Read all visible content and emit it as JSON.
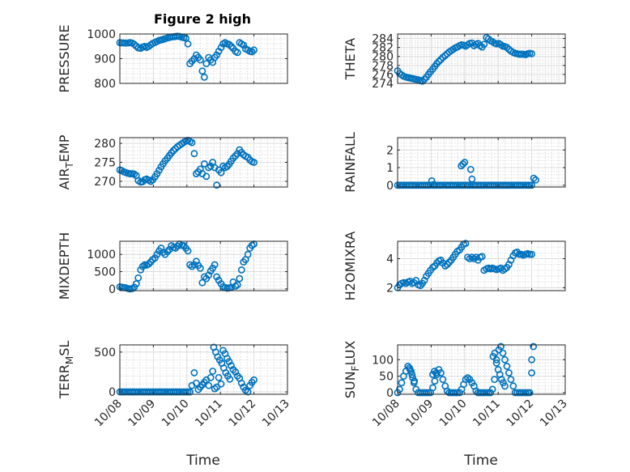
{
  "figure_title": "Figure 2 high",
  "marker_color": "#0072BD",
  "chart_data": [
    {
      "type": "scatter",
      "ylabel": "PRESSURE",
      "ylim": [
        800,
        1000
      ],
      "yticks": [
        800,
        900,
        1000
      ],
      "ytick_labels": [
        "800",
        "900",
        "1000"
      ],
      "xlim": [
        0,
        5
      ],
      "x": [
        0.0,
        0.06,
        0.12,
        0.18,
        0.25,
        0.31,
        0.37,
        0.43,
        0.49,
        0.55,
        0.62,
        0.68,
        0.74,
        0.8,
        0.86,
        0.92,
        0.98,
        1.05,
        1.11,
        1.17,
        1.23,
        1.29,
        1.35,
        1.42,
        1.48,
        1.54,
        1.6,
        1.66,
        1.72,
        1.78,
        1.85,
        1.91,
        1.97,
        2.03,
        2.09,
        2.15,
        2.22,
        2.28,
        2.34,
        2.4,
        2.46,
        2.52,
        2.58,
        2.65,
        2.71,
        2.77,
        2.83,
        2.89,
        2.95,
        3.02,
        3.08,
        3.14,
        3.2,
        3.26,
        3.32,
        3.38,
        3.45,
        3.51,
        3.57,
        3.63,
        3.69,
        3.75,
        3.82,
        3.88,
        3.94,
        4.0
      ],
      "y": [
        965,
        964,
        964,
        963,
        964,
        965,
        963,
        958,
        951,
        944,
        942,
        947,
        950,
        946,
        950,
        956,
        962,
        966,
        970,
        974,
        976,
        978,
        981,
        984,
        986,
        988,
        989,
        990,
        991,
        990,
        987,
        985,
        983,
        960,
        880,
        890,
        900,
        915,
        905,
        895,
        850,
        825,
        880,
        905,
        895,
        885,
        905,
        915,
        930,
        945,
        960,
        965,
        960,
        958,
        950,
        942,
        930,
        925,
        965,
        960,
        955,
        940,
        935,
        930,
        928,
        935
      ]
    },
    {
      "type": "scatter",
      "ylabel": "THETA",
      "ylim": [
        274,
        285
      ],
      "yticks": [
        274,
        276,
        278,
        280,
        282,
        284
      ],
      "ytick_labels": [
        "274",
        "276",
        "278",
        "280",
        "282",
        "284"
      ],
      "xlim": [
        0,
        5
      ],
      "x": [
        0.0,
        0.06,
        0.12,
        0.18,
        0.25,
        0.31,
        0.37,
        0.43,
        0.49,
        0.55,
        0.62,
        0.68,
        0.74,
        0.8,
        0.86,
        0.92,
        0.98,
        1.05,
        1.11,
        1.17,
        1.23,
        1.29,
        1.35,
        1.42,
        1.48,
        1.54,
        1.6,
        1.66,
        1.72,
        1.78,
        1.85,
        1.91,
        1.97,
        2.03,
        2.09,
        2.15,
        2.22,
        2.28,
        2.34,
        2.4,
        2.46,
        2.52,
        2.58,
        2.65,
        2.71,
        2.77,
        2.83,
        2.89,
        2.95,
        3.02,
        3.08,
        3.14,
        3.2,
        3.26,
        3.32,
        3.38,
        3.45,
        3.51,
        3.57,
        3.63,
        3.69,
        3.75,
        3.82,
        3.88,
        3.94,
        4.0
      ],
      "y": [
        276.8,
        276.2,
        275.9,
        275.6,
        275.4,
        275.3,
        275.2,
        275.1,
        275.0,
        274.9,
        274.8,
        274.6,
        274.5,
        274.9,
        275.4,
        276.0,
        276.6,
        277.2,
        277.8,
        278.4,
        278.9,
        279.3,
        279.8,
        280.2,
        280.6,
        281.0,
        281.3,
        281.6,
        281.9,
        282.1,
        282.4,
        282.6,
        282.5,
        282.3,
        282.6,
        282.9,
        283.0,
        282.4,
        282.7,
        282.9,
        282.4,
        282.1,
        282.7,
        284.2,
        283.9,
        283.5,
        283.3,
        283.0,
        282.8,
        282.9,
        282.6,
        282.3,
        282.2,
        282.0,
        281.6,
        281.2,
        280.9,
        280.7,
        280.6,
        280.5,
        280.5,
        280.5,
        280.4,
        280.6,
        280.7,
        280.6
      ]
    },
    {
      "type": "scatter",
      "ylabel": "AIR_TEMP",
      "ylim": [
        268.5,
        281.5
      ],
      "yticks": [
        270,
        275,
        280
      ],
      "ytick_labels": [
        "270",
        "275",
        "280"
      ],
      "xlim": [
        0,
        5
      ],
      "x": [
        0.0,
        0.06,
        0.12,
        0.18,
        0.25,
        0.31,
        0.37,
        0.43,
        0.49,
        0.55,
        0.62,
        0.68,
        0.74,
        0.8,
        0.86,
        0.92,
        0.98,
        1.05,
        1.11,
        1.17,
        1.23,
        1.29,
        1.35,
        1.42,
        1.48,
        1.54,
        1.6,
        1.66,
        1.72,
        1.78,
        1.85,
        1.91,
        1.97,
        2.03,
        2.09,
        2.15,
        2.22,
        2.28,
        2.34,
        2.4,
        2.46,
        2.52,
        2.58,
        2.65,
        2.71,
        2.77,
        2.83,
        2.89,
        2.95,
        3.02,
        3.08,
        3.14,
        3.2,
        3.26,
        3.32,
        3.38,
        3.45,
        3.51,
        3.57,
        3.63,
        3.69,
        3.75,
        3.82,
        3.88,
        3.94,
        4.0
      ],
      "y": [
        273.0,
        272.8,
        272.5,
        272.3,
        272.1,
        272.0,
        272.0,
        271.9,
        271.5,
        270.2,
        269.8,
        269.9,
        270.4,
        270.6,
        270.3,
        270.0,
        270.4,
        271.2,
        272.0,
        272.9,
        273.8,
        274.6,
        275.4,
        276.1,
        276.8,
        277.5,
        278.1,
        278.6,
        279.1,
        279.5,
        279.9,
        280.3,
        280.6,
        280.8,
        280.5,
        280.2,
        277.3,
        272.0,
        272.5,
        273.2,
        272.0,
        274.6,
        271.3,
        273.6,
        274.0,
        275.0,
        273.6,
        269.0,
        273.0,
        272.3,
        274.0,
        273.6,
        273.9,
        274.5,
        275.3,
        276.1,
        276.7,
        277.3,
        278.3,
        277.6,
        277.0,
        276.6,
        276.3,
        275.6,
        275.2,
        275.0
      ]
    },
    {
      "type": "scatter",
      "ylabel": "RAINFALL",
      "ylim": [
        -0.1,
        2.7
      ],
      "yticks": [
        0,
        1,
        2
      ],
      "ytick_labels": [
        "0",
        "1",
        "2"
      ],
      "xlim": [
        0,
        5
      ],
      "x": [
        0.0,
        0.06,
        0.12,
        0.18,
        0.25,
        0.31,
        0.37,
        0.43,
        0.49,
        0.55,
        0.62,
        0.68,
        0.74,
        0.8,
        0.86,
        0.92,
        0.98,
        1.05,
        1.11,
        1.17,
        1.23,
        1.29,
        1.35,
        1.42,
        1.48,
        1.54,
        1.6,
        1.66,
        1.72,
        1.78,
        1.85,
        1.91,
        1.97,
        2.03,
        2.09,
        2.15,
        2.22,
        2.28,
        2.34,
        2.4,
        2.46,
        2.52,
        2.58,
        2.65,
        2.71,
        2.77,
        2.83,
        2.89,
        2.95,
        3.02,
        3.08,
        3.14,
        3.2,
        3.26,
        3.32,
        3.38,
        3.45,
        3.51,
        3.57,
        3.63,
        3.69,
        3.75,
        3.82,
        3.88,
        3.94,
        4.0,
        4.06,
        4.12,
        1.02,
        1.08,
        1.9,
        1.95,
        2.0,
        2.18,
        2.22
      ],
      "y": [
        0,
        0,
        0,
        0,
        0,
        0,
        0,
        0,
        0,
        0,
        0,
        0,
        0,
        0,
        0,
        0,
        0,
        0,
        0,
        0,
        0,
        0,
        0,
        0,
        0,
        0,
        0,
        0,
        0,
        0,
        0,
        0,
        0,
        0,
        0,
        0,
        0,
        0,
        0,
        0,
        0,
        0,
        0,
        0,
        0,
        0,
        0,
        0,
        0,
        0,
        0,
        0,
        0,
        0,
        0,
        0,
        0,
        0,
        0,
        0,
        0,
        0,
        0,
        0,
        0,
        0,
        0.4,
        0.3,
        0.25,
        0.05,
        1.1,
        1.2,
        1.3,
        0.9,
        0.35
      ]
    },
    {
      "type": "scatter",
      "ylabel": "MIXDEPTH",
      "ylim": [
        -50,
        1380
      ],
      "yticks": [
        0,
        500,
        1000
      ],
      "ytick_labels": [
        "0",
        "500",
        "1000"
      ],
      "xlim": [
        0,
        5
      ],
      "x": [
        0.0,
        0.06,
        0.12,
        0.18,
        0.25,
        0.31,
        0.37,
        0.43,
        0.49,
        0.55,
        0.62,
        0.68,
        0.74,
        0.8,
        0.86,
        0.92,
        0.98,
        1.05,
        1.11,
        1.17,
        1.23,
        1.29,
        1.35,
        1.42,
        1.48,
        1.54,
        1.6,
        1.66,
        1.72,
        1.78,
        1.85,
        1.91,
        1.97,
        2.03,
        2.09,
        2.15,
        2.22,
        2.28,
        2.34,
        2.4,
        2.46,
        2.52,
        2.58,
        2.65,
        2.71,
        2.77,
        2.83,
        2.89,
        2.95,
        3.02,
        3.08,
        3.14,
        3.2,
        3.26,
        3.32,
        3.38,
        3.45,
        3.51,
        3.57,
        3.63,
        3.69,
        3.75,
        3.82,
        3.88,
        3.94,
        4.0
      ],
      "y": [
        60,
        50,
        40,
        30,
        10,
        0,
        10,
        50,
        150,
        320,
        550,
        650,
        700,
        690,
        720,
        780,
        850,
        900,
        1000,
        1100,
        1180,
        1060,
        1000,
        1080,
        1140,
        1250,
        1200,
        1180,
        1240,
        1300,
        1260,
        1250,
        1180,
        1100,
        700,
        650,
        700,
        800,
        680,
        600,
        180,
        350,
        300,
        400,
        520,
        600,
        700,
        350,
        250,
        150,
        60,
        40,
        20,
        30,
        40,
        200,
        80,
        120,
        300,
        550,
        780,
        850,
        1000,
        1180,
        1260,
        1300
      ]
    },
    {
      "type": "scatter",
      "ylabel": "H2OMIXRA",
      "ylim": [
        1.8,
        5.2
      ],
      "yticks": [
        2,
        4
      ],
      "ytick_labels": [
        "2",
        "4"
      ],
      "xlim": [
        0,
        5
      ],
      "x": [
        0.0,
        0.06,
        0.12,
        0.18,
        0.25,
        0.31,
        0.37,
        0.43,
        0.49,
        0.55,
        0.62,
        0.68,
        0.74,
        0.8,
        0.86,
        0.92,
        0.98,
        1.05,
        1.11,
        1.17,
        1.23,
        1.29,
        1.35,
        1.42,
        1.48,
        1.54,
        1.6,
        1.66,
        1.72,
        1.78,
        1.85,
        1.91,
        1.97,
        2.03,
        2.09,
        2.15,
        2.22,
        2.28,
        2.34,
        2.4,
        2.46,
        2.52,
        2.58,
        2.65,
        2.71,
        2.77,
        2.83,
        2.89,
        2.95,
        3.02,
        3.08,
        3.14,
        3.2,
        3.26,
        3.32,
        3.38,
        3.45,
        3.51,
        3.57,
        3.63,
        3.69,
        3.75,
        3.82,
        3.88,
        3.94,
        4.0
      ],
      "y": [
        2.0,
        2.2,
        2.3,
        2.35,
        2.3,
        2.4,
        2.45,
        2.3,
        2.35,
        2.5,
        2.2,
        2.15,
        2.3,
        2.5,
        2.8,
        3.0,
        3.2,
        3.4,
        3.5,
        3.7,
        3.85,
        3.9,
        3.7,
        3.5,
        3.6,
        3.75,
        3.9,
        4.1,
        4.3,
        4.5,
        4.6,
        4.8,
        5.0,
        5.05,
        4.1,
        4.0,
        4.1,
        4.0,
        4.1,
        3.9,
        4.1,
        4.15,
        3.2,
        3.3,
        3.35,
        3.3,
        3.35,
        3.3,
        3.25,
        3.3,
        3.35,
        3.2,
        3.3,
        3.4,
        3.6,
        3.9,
        4.2,
        4.4,
        4.45,
        4.3,
        4.3,
        4.25,
        4.3,
        4.35,
        4.3,
        4.3
      ]
    },
    {
      "type": "scatter",
      "ylabel": "TERR_MSL",
      "ylim": [
        -30,
        590
      ],
      "yticks": [
        0,
        500
      ],
      "ytick_labels": [
        "0",
        "500"
      ],
      "xlim": [
        0,
        5
      ],
      "x": [
        0.0,
        0.06,
        0.12,
        0.18,
        0.25,
        0.31,
        0.37,
        0.43,
        0.49,
        0.55,
        0.62,
        0.68,
        0.74,
        0.8,
        0.86,
        0.92,
        0.98,
        1.05,
        1.11,
        1.17,
        1.23,
        1.29,
        1.35,
        1.42,
        1.48,
        1.54,
        1.6,
        1.66,
        1.72,
        1.78,
        1.85,
        1.91,
        1.97,
        2.03,
        2.09,
        2.15,
        2.22,
        2.28,
        2.34,
        2.4,
        2.46,
        2.52,
        2.58,
        2.65,
        2.71,
        2.77,
        2.83,
        2.89,
        2.95,
        3.02,
        3.08,
        3.14,
        3.2,
        3.26,
        3.32,
        3.38,
        3.45,
        3.51,
        3.57,
        3.63,
        3.69,
        3.75,
        3.82,
        3.88,
        3.94,
        4.0,
        2.8,
        2.86,
        2.92,
        2.98,
        3.04,
        3.1,
        3.16,
        3.22,
        3.28
      ],
      "y": [
        0,
        0,
        0,
        0,
        0,
        0,
        0,
        0,
        0,
        0,
        0,
        0,
        0,
        0,
        0,
        0,
        0,
        0,
        0,
        0,
        0,
        0,
        0,
        0,
        0,
        0,
        0,
        0,
        0,
        0,
        0,
        0,
        0,
        0,
        0,
        80,
        240,
        110,
        30,
        60,
        90,
        120,
        150,
        80,
        180,
        260,
        40,
        60,
        180,
        100,
        520,
        480,
        420,
        380,
        330,
        280,
        250,
        200,
        170,
        110,
        60,
        20,
        0,
        80,
        120,
        150,
        560,
        500,
        440,
        400,
        360,
        300,
        240,
        200,
        160
      ]
    },
    {
      "type": "scatter",
      "ylabel": "SUN_FLUX",
      "ylim": [
        -5,
        145
      ],
      "yticks": [
        0,
        50,
        100
      ],
      "ytick_labels": [
        "0",
        "50",
        "100"
      ],
      "xlim": [
        0,
        5
      ],
      "x": [
        0.0,
        0.06,
        0.12,
        0.18,
        0.25,
        0.31,
        0.37,
        0.43,
        0.49,
        0.55,
        0.62,
        0.68,
        0.74,
        0.8,
        0.86,
        0.92,
        0.98,
        1.05,
        1.11,
        1.17,
        1.23,
        1.29,
        1.35,
        1.42,
        1.48,
        1.54,
        1.6,
        1.66,
        1.72,
        1.78,
        1.85,
        1.91,
        1.97,
        2.03,
        2.09,
        2.15,
        2.22,
        2.28,
        2.34,
        2.4,
        2.46,
        2.52,
        2.58,
        2.65,
        2.71,
        2.77,
        2.83,
        2.89,
        2.95,
        3.02,
        3.08,
        3.14,
        3.2,
        3.26,
        3.32,
        3.38,
        3.45,
        3.51,
        3.57,
        3.63,
        3.69,
        3.75,
        3.82,
        3.88,
        3.94,
        4.0,
        0.35,
        0.4,
        0.45,
        0.5,
        1.05,
        1.1,
        1.15,
        2.85,
        2.9,
        2.95,
        3.0,
        3.05,
        3.1,
        3.15,
        3.2,
        4.0,
        4.05
      ],
      "y": [
        0,
        10,
        30,
        50,
        65,
        80,
        70,
        55,
        30,
        10,
        0,
        0,
        0,
        0,
        0,
        0,
        0,
        15,
        35,
        55,
        70,
        60,
        40,
        20,
        5,
        0,
        0,
        0,
        0,
        0,
        0,
        10,
        25,
        40,
        45,
        40,
        30,
        20,
        5,
        0,
        0,
        0,
        0,
        0,
        0,
        0,
        10,
        40,
        90,
        130,
        140,
        120,
        100,
        80,
        60,
        40,
        20,
        0,
        0,
        0,
        0,
        0,
        0,
        0,
        0,
        60,
        75,
        65,
        45,
        35,
        55,
        65,
        60,
        110,
        120,
        100,
        70,
        55,
        40,
        30,
        20,
        100,
        140
      ]
    }
  ],
  "x_axis": {
    "tick_labels": [
      "10/08",
      "10/09",
      "10/10",
      "10/11",
      "10/12",
      "10/13"
    ],
    "label": "Time"
  }
}
